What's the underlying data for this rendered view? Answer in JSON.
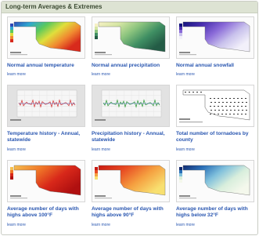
{
  "header": {
    "title": "Long-term Averages & Extremes"
  },
  "items": [
    {
      "title": "Normal annual temperature",
      "link": "learn more"
    },
    {
      "title": "Normal annual precipitation",
      "link": "learn more"
    },
    {
      "title": "Normal annual snowfall",
      "link": "learn more"
    },
    {
      "title": "Temperature history - Annual, statewide",
      "link": "learn more"
    },
    {
      "title": "Precipitation history - Annual, statewide",
      "link": "learn more"
    },
    {
      "title": "Total number of tornadoes by county",
      "link": "learn more"
    },
    {
      "title": "Average number of days with highs above 100°F",
      "link": "learn more"
    },
    {
      "title": "Average number of days with highs above 90°F",
      "link": "learn more"
    },
    {
      "title": "Average number of days with highs below 32°F",
      "link": "learn more"
    }
  ]
}
